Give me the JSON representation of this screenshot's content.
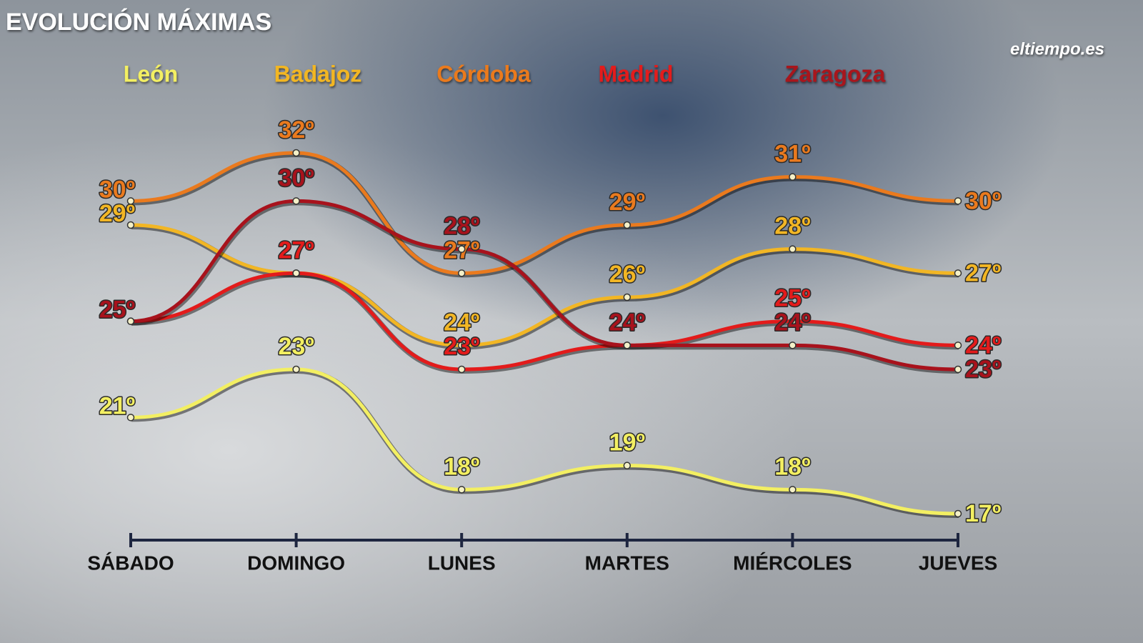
{
  "chart_data": {
    "type": "line",
    "title": "EVOLUCIÓN MÁXIMAS",
    "logo": "eltiempo.es",
    "categories": [
      "SÁBADO",
      "DOMINGO",
      "LUNES",
      "MARTES",
      "MIÉRCOLES",
      "JUEVES"
    ],
    "series": [
      {
        "name": "León",
        "color": "#f3ef62",
        "values": [
          21,
          23,
          18,
          19,
          18,
          17
        ],
        "value_labels": [
          "21º",
          "23º",
          "18º",
          "19º",
          "18º",
          "17º"
        ]
      },
      {
        "name": "Badajoz",
        "color": "#f2b624",
        "values": [
          29,
          27,
          24,
          26,
          28,
          27
        ],
        "value_labels": [
          "29º",
          null,
          "24º",
          "26º",
          "28º",
          "27º"
        ]
      },
      {
        "name": "Córdoba",
        "color": "#ea7a1e",
        "values": [
          30,
          32,
          27,
          29,
          31,
          30
        ],
        "value_labels": [
          "30º",
          "32º",
          "27º",
          "29º",
          "31º",
          "30º"
        ]
      },
      {
        "name": "Madrid",
        "color": "#e31b1b",
        "values": [
          25,
          27,
          23,
          24,
          25,
          24
        ],
        "value_labels": [
          null,
          "27º",
          "23º",
          null,
          "25º",
          "24º"
        ]
      },
      {
        "name": "Zaragoza",
        "color": "#a8121c",
        "values": [
          25,
          30,
          28,
          24,
          24,
          23
        ],
        "value_labels": [
          "25º",
          "30º",
          "28º",
          "24º",
          "24º",
          "23º"
        ]
      }
    ]
  }
}
